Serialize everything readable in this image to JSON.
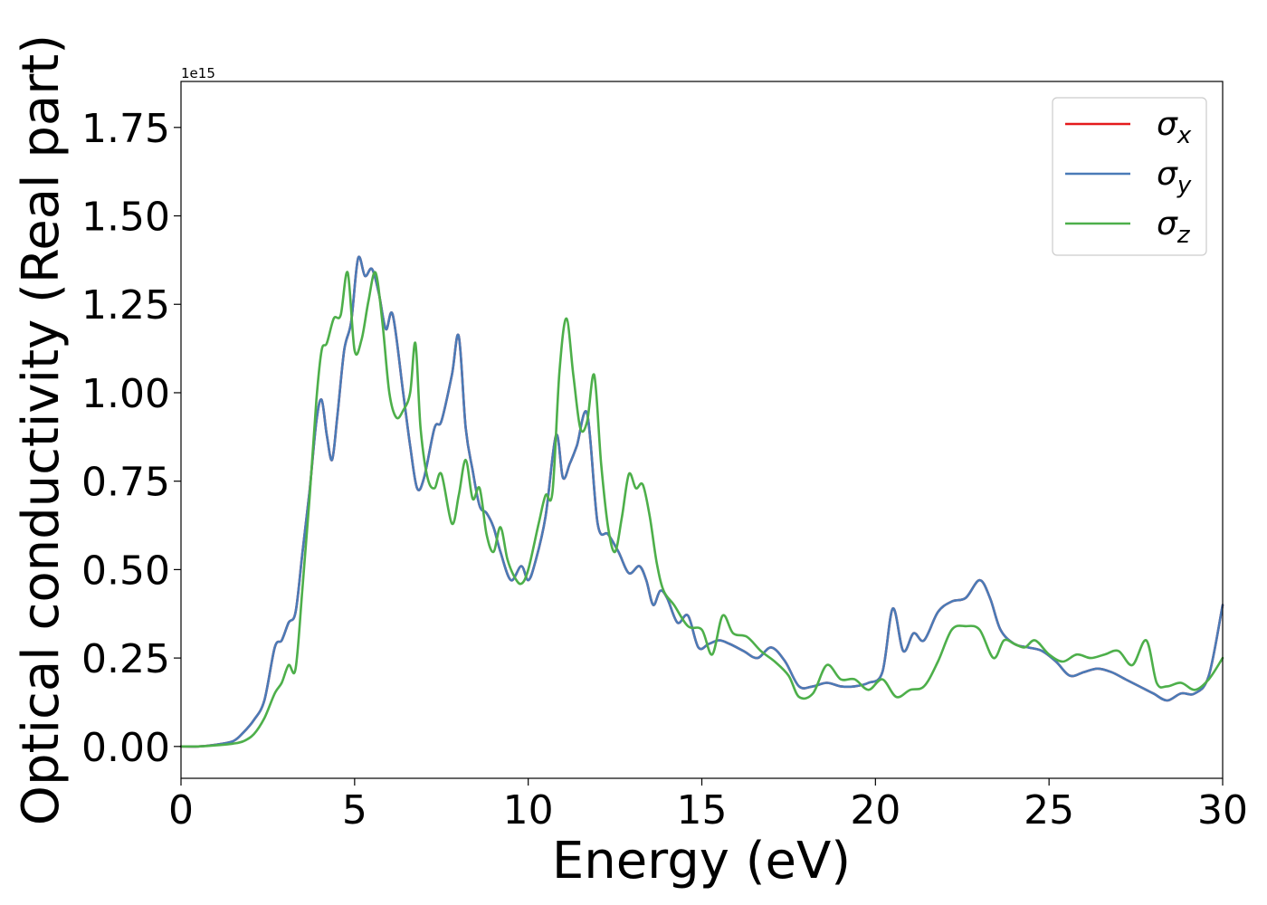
{
  "chart_data": {
    "type": "line",
    "xlabel": "Energy (eV)",
    "ylabel": "Optical conductivity (Real part)",
    "y_offset_label": "1e15",
    "y_scale": 1000000000000000.0,
    "xlim": [
      0,
      30
    ],
    "ylim": [
      -0.09,
      1.88
    ],
    "x_ticks": [
      0,
      5,
      10,
      15,
      20,
      25,
      30
    ],
    "x_tick_labels": [
      "0",
      "5",
      "10",
      "15",
      "20",
      "25",
      "30"
    ],
    "y_ticks": [
      0,
      0.25,
      0.5,
      0.75,
      1.0,
      1.25,
      1.5,
      1.75
    ],
    "y_tick_labels": [
      "0.00",
      "0.25",
      "0.50",
      "0.75",
      "1.00",
      "1.25",
      "1.50",
      "1.75"
    ],
    "grid": false,
    "legend_position": "top-right",
    "series": [
      {
        "name": "σ",
        "subscript": "x",
        "color": "#e41a1c",
        "x": [
          0,
          0.5,
          1,
          1.5,
          1.8,
          2.1,
          2.4,
          2.7,
          2.9,
          3.1,
          3.3,
          3.5,
          3.7,
          3.9,
          4.05,
          4.2,
          4.35,
          4.5,
          4.7,
          4.9,
          5.1,
          5.3,
          5.5,
          5.7,
          5.9,
          6.1,
          6.4,
          6.6,
          6.8,
          7.0,
          7.3,
          7.5,
          7.8,
          8.0,
          8.2,
          8.4,
          8.6,
          8.8,
          9.0,
          9.2,
          9.5,
          9.8,
          10.0,
          10.2,
          10.5,
          10.8,
          11.0,
          11.2,
          11.4,
          11.7,
          12.0,
          12.3,
          12.6,
          12.9,
          13.2,
          13.4,
          13.6,
          13.8,
          14.0,
          14.3,
          14.6,
          14.9,
          15.2,
          15.5,
          15.8,
          16.2,
          16.6,
          17.0,
          17.4,
          17.8,
          18.2,
          18.6,
          19.0,
          19.4,
          19.8,
          20.2,
          20.5,
          20.8,
          21.1,
          21.4,
          21.8,
          22.2,
          22.6,
          23.0,
          23.3,
          23.6,
          24.0,
          24.4,
          24.8,
          25.2,
          25.6,
          26.0,
          26.4,
          26.8,
          27.2,
          27.6,
          28.0,
          28.4,
          28.8,
          29.2,
          29.6,
          30.0
        ],
        "values": [
          0.0,
          0.0,
          0.005,
          0.015,
          0.04,
          0.075,
          0.13,
          0.28,
          0.3,
          0.35,
          0.38,
          0.55,
          0.72,
          0.92,
          0.98,
          0.88,
          0.81,
          0.93,
          1.12,
          1.2,
          1.38,
          1.33,
          1.35,
          1.28,
          1.18,
          1.22,
          1.0,
          0.85,
          0.73,
          0.76,
          0.9,
          0.92,
          1.05,
          1.16,
          0.9,
          0.78,
          0.68,
          0.66,
          0.62,
          0.55,
          0.47,
          0.51,
          0.47,
          0.52,
          0.65,
          0.88,
          0.76,
          0.8,
          0.85,
          0.94,
          0.63,
          0.6,
          0.55,
          0.49,
          0.51,
          0.47,
          0.4,
          0.44,
          0.42,
          0.35,
          0.37,
          0.28,
          0.29,
          0.3,
          0.29,
          0.27,
          0.25,
          0.28,
          0.24,
          0.17,
          0.17,
          0.18,
          0.17,
          0.17,
          0.18,
          0.21,
          0.39,
          0.27,
          0.32,
          0.3,
          0.38,
          0.41,
          0.42,
          0.47,
          0.42,
          0.33,
          0.29,
          0.28,
          0.27,
          0.24,
          0.2,
          0.21,
          0.22,
          0.21,
          0.19,
          0.17,
          0.15,
          0.13,
          0.15,
          0.15,
          0.2,
          0.4
        ]
      },
      {
        "name": "σ",
        "subscript": "y",
        "color": "#4a7bb7",
        "x": [
          0,
          0.5,
          1,
          1.5,
          1.8,
          2.1,
          2.4,
          2.7,
          2.9,
          3.1,
          3.3,
          3.5,
          3.7,
          3.9,
          4.05,
          4.2,
          4.35,
          4.5,
          4.7,
          4.9,
          5.1,
          5.3,
          5.5,
          5.7,
          5.9,
          6.1,
          6.4,
          6.6,
          6.8,
          7.0,
          7.3,
          7.5,
          7.8,
          8.0,
          8.2,
          8.4,
          8.6,
          8.8,
          9.0,
          9.2,
          9.5,
          9.8,
          10.0,
          10.2,
          10.5,
          10.8,
          11.0,
          11.2,
          11.4,
          11.7,
          12.0,
          12.3,
          12.6,
          12.9,
          13.2,
          13.4,
          13.6,
          13.8,
          14.0,
          14.3,
          14.6,
          14.9,
          15.2,
          15.5,
          15.8,
          16.2,
          16.6,
          17.0,
          17.4,
          17.8,
          18.2,
          18.6,
          19.0,
          19.4,
          19.8,
          20.2,
          20.5,
          20.8,
          21.1,
          21.4,
          21.8,
          22.2,
          22.6,
          23.0,
          23.3,
          23.6,
          24.0,
          24.4,
          24.8,
          25.2,
          25.6,
          26.0,
          26.4,
          26.8,
          27.2,
          27.6,
          28.0,
          28.4,
          28.8,
          29.2,
          29.6,
          30.0
        ],
        "values": [
          0.0,
          0.0,
          0.005,
          0.015,
          0.04,
          0.075,
          0.13,
          0.28,
          0.3,
          0.35,
          0.38,
          0.55,
          0.72,
          0.92,
          0.98,
          0.88,
          0.81,
          0.93,
          1.12,
          1.2,
          1.38,
          1.33,
          1.35,
          1.28,
          1.18,
          1.22,
          1.0,
          0.85,
          0.73,
          0.76,
          0.9,
          0.92,
          1.05,
          1.16,
          0.9,
          0.78,
          0.68,
          0.66,
          0.62,
          0.55,
          0.47,
          0.51,
          0.47,
          0.52,
          0.65,
          0.88,
          0.76,
          0.8,
          0.85,
          0.94,
          0.63,
          0.6,
          0.55,
          0.49,
          0.51,
          0.47,
          0.4,
          0.44,
          0.42,
          0.35,
          0.37,
          0.28,
          0.29,
          0.3,
          0.29,
          0.27,
          0.25,
          0.28,
          0.24,
          0.17,
          0.17,
          0.18,
          0.17,
          0.17,
          0.18,
          0.21,
          0.39,
          0.27,
          0.32,
          0.3,
          0.38,
          0.41,
          0.42,
          0.47,
          0.42,
          0.33,
          0.29,
          0.28,
          0.27,
          0.24,
          0.2,
          0.21,
          0.22,
          0.21,
          0.19,
          0.17,
          0.15,
          0.13,
          0.15,
          0.15,
          0.2,
          0.4
        ]
      },
      {
        "name": "σ",
        "subscript": "z",
        "color": "#4daf4a",
        "x": [
          0,
          0.5,
          1,
          1.5,
          1.8,
          2.1,
          2.4,
          2.7,
          2.9,
          3.1,
          3.3,
          3.5,
          3.7,
          3.9,
          4.05,
          4.2,
          4.4,
          4.6,
          4.8,
          5.0,
          5.2,
          5.4,
          5.6,
          5.8,
          6.0,
          6.2,
          6.4,
          6.6,
          6.75,
          6.9,
          7.1,
          7.3,
          7.5,
          7.8,
          8.0,
          8.2,
          8.4,
          8.6,
          8.8,
          9.0,
          9.2,
          9.4,
          9.6,
          9.8,
          10.0,
          10.3,
          10.5,
          10.7,
          10.9,
          11.1,
          11.3,
          11.5,
          11.7,
          11.9,
          12.1,
          12.3,
          12.5,
          12.7,
          12.9,
          13.1,
          13.3,
          13.5,
          13.7,
          13.9,
          14.2,
          14.6,
          15.0,
          15.3,
          15.6,
          15.9,
          16.3,
          16.7,
          17.1,
          17.5,
          17.8,
          18.2,
          18.6,
          19.0,
          19.4,
          19.8,
          20.2,
          20.6,
          21.0,
          21.4,
          21.8,
          22.2,
          22.6,
          23.0,
          23.4,
          23.7,
          24.0,
          24.3,
          24.6,
          25.0,
          25.4,
          25.8,
          26.2,
          26.6,
          27.0,
          27.4,
          27.8,
          28.1,
          28.4,
          28.8,
          29.2,
          29.6,
          30.0
        ],
        "values": [
          0.0,
          0.0,
          0.003,
          0.008,
          0.015,
          0.035,
          0.08,
          0.15,
          0.18,
          0.23,
          0.22,
          0.45,
          0.7,
          0.98,
          1.12,
          1.14,
          1.21,
          1.22,
          1.34,
          1.12,
          1.15,
          1.26,
          1.34,
          1.2,
          1.0,
          0.93,
          0.95,
          1.0,
          1.14,
          0.9,
          0.76,
          0.73,
          0.77,
          0.63,
          0.71,
          0.81,
          0.7,
          0.73,
          0.6,
          0.55,
          0.62,
          0.53,
          0.48,
          0.46,
          0.5,
          0.63,
          0.71,
          0.72,
          1.06,
          1.21,
          1.05,
          0.9,
          0.92,
          1.05,
          0.8,
          0.62,
          0.55,
          0.65,
          0.77,
          0.73,
          0.74,
          0.65,
          0.52,
          0.44,
          0.4,
          0.34,
          0.33,
          0.26,
          0.37,
          0.32,
          0.31,
          0.27,
          0.24,
          0.2,
          0.14,
          0.15,
          0.23,
          0.19,
          0.19,
          0.16,
          0.19,
          0.14,
          0.16,
          0.17,
          0.24,
          0.33,
          0.34,
          0.33,
          0.25,
          0.3,
          0.29,
          0.28,
          0.3,
          0.26,
          0.24,
          0.26,
          0.25,
          0.26,
          0.27,
          0.23,
          0.3,
          0.18,
          0.17,
          0.18,
          0.16,
          0.19,
          0.25
        ]
      }
    ]
  }
}
